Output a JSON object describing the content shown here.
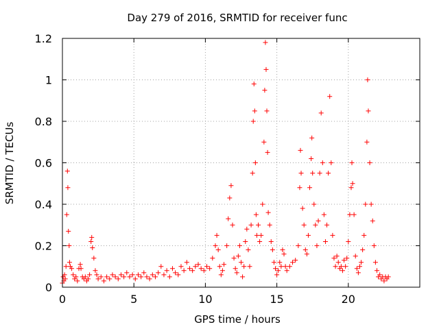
{
  "chart_data": {
    "type": "scatter",
    "title": "Day 279 of 2016, SRMTID for receiver func",
    "xlabel": "GPS time / hours",
    "ylabel": "SRMTID / TECUs",
    "xlim": [
      0,
      25
    ],
    "ylim": [
      0,
      1.2
    ],
    "xticks": [
      0,
      5,
      10,
      15,
      20
    ],
    "xtick_labels": [
      "0",
      "5",
      "10",
      "15",
      "20"
    ],
    "yticks": [
      0,
      0.2,
      0.4,
      0.6,
      0.8,
      1.0,
      1.2
    ],
    "ytick_labels": [
      "0",
      "0.2",
      "0.4",
      "0.6",
      "0.8",
      "1",
      "1.2"
    ],
    "grid": true,
    "marker": "+",
    "color": "#ff0000",
    "series": [
      {
        "name": "SRMTID",
        "points": [
          [
            0.0,
            0.02
          ],
          [
            0.05,
            0.05
          ],
          [
            0.1,
            0.03
          ],
          [
            0.15,
            0.06
          ],
          [
            0.2,
            0.04
          ],
          [
            0.25,
            0.1
          ],
          [
            0.3,
            0.35
          ],
          [
            0.35,
            0.56
          ],
          [
            0.38,
            0.48
          ],
          [
            0.42,
            0.27
          ],
          [
            0.47,
            0.2
          ],
          [
            0.5,
            0.12
          ],
          [
            0.55,
            0.1
          ],
          [
            0.65,
            0.09
          ],
          [
            0.75,
            0.06
          ],
          [
            0.85,
            0.04
          ],
          [
            0.95,
            0.05
          ],
          [
            1.05,
            0.03
          ],
          [
            1.15,
            0.09
          ],
          [
            1.25,
            0.11
          ],
          [
            1.3,
            0.09
          ],
          [
            1.4,
            0.05
          ],
          [
            1.5,
            0.04
          ],
          [
            1.6,
            0.05
          ],
          [
            1.7,
            0.03
          ],
          [
            1.8,
            0.04
          ],
          [
            1.9,
            0.06
          ],
          [
            2.0,
            0.22
          ],
          [
            2.05,
            0.24
          ],
          [
            2.1,
            0.19
          ],
          [
            2.2,
            0.14
          ],
          [
            2.3,
            0.08
          ],
          [
            2.4,
            0.06
          ],
          [
            2.5,
            0.04
          ],
          [
            2.7,
            0.05
          ],
          [
            2.9,
            0.03
          ],
          [
            3.1,
            0.05
          ],
          [
            3.3,
            0.04
          ],
          [
            3.5,
            0.06
          ],
          [
            3.7,
            0.05
          ],
          [
            3.9,
            0.04
          ],
          [
            4.1,
            0.06
          ],
          [
            4.3,
            0.05
          ],
          [
            4.5,
            0.07
          ],
          [
            4.7,
            0.05
          ],
          [
            4.9,
            0.06
          ],
          [
            5.1,
            0.04
          ],
          [
            5.3,
            0.06
          ],
          [
            5.5,
            0.05
          ],
          [
            5.7,
            0.07
          ],
          [
            5.9,
            0.05
          ],
          [
            6.1,
            0.04
          ],
          [
            6.3,
            0.06
          ],
          [
            6.5,
            0.05
          ],
          [
            6.7,
            0.07
          ],
          [
            6.9,
            0.1
          ],
          [
            7.1,
            0.06
          ],
          [
            7.3,
            0.08
          ],
          [
            7.5,
            0.05
          ],
          [
            7.7,
            0.09
          ],
          [
            7.9,
            0.07
          ],
          [
            8.1,
            0.06
          ],
          [
            8.3,
            0.1
          ],
          [
            8.5,
            0.08
          ],
          [
            8.7,
            0.12
          ],
          [
            8.9,
            0.09
          ],
          [
            9.1,
            0.08
          ],
          [
            9.3,
            0.1
          ],
          [
            9.5,
            0.11
          ],
          [
            9.7,
            0.09
          ],
          [
            9.9,
            0.08
          ],
          [
            10.1,
            0.1
          ],
          [
            10.3,
            0.09
          ],
          [
            10.5,
            0.14
          ],
          [
            10.7,
            0.2
          ],
          [
            10.8,
            0.25
          ],
          [
            10.9,
            0.18
          ],
          [
            11.0,
            0.1
          ],
          [
            11.1,
            0.06
          ],
          [
            11.2,
            0.08
          ],
          [
            11.3,
            0.11
          ],
          [
            11.5,
            0.2
          ],
          [
            11.6,
            0.33
          ],
          [
            11.7,
            0.43
          ],
          [
            11.8,
            0.49
          ],
          [
            11.9,
            0.3
          ],
          [
            12.0,
            0.14
          ],
          [
            12.1,
            0.09
          ],
          [
            12.2,
            0.07
          ],
          [
            12.3,
            0.15
          ],
          [
            12.4,
            0.2
          ],
          [
            12.5,
            0.12
          ],
          [
            12.6,
            0.05
          ],
          [
            12.7,
            0.1
          ],
          [
            12.8,
            0.22
          ],
          [
            12.9,
            0.28
          ],
          [
            13.0,
            0.18
          ],
          [
            13.1,
            0.1
          ],
          [
            13.2,
            0.3
          ],
          [
            13.3,
            0.55
          ],
          [
            13.35,
            0.8
          ],
          [
            13.4,
            0.98
          ],
          [
            13.45,
            0.85
          ],
          [
            13.5,
            0.6
          ],
          [
            13.55,
            0.35
          ],
          [
            13.6,
            0.25
          ],
          [
            13.7,
            0.3
          ],
          [
            13.8,
            0.22
          ],
          [
            13.9,
            0.25
          ],
          [
            14.0,
            0.4
          ],
          [
            14.1,
            0.7
          ],
          [
            14.15,
            0.95
          ],
          [
            14.2,
            1.18
          ],
          [
            14.25,
            1.05
          ],
          [
            14.3,
            0.85
          ],
          [
            14.35,
            0.65
          ],
          [
            14.4,
            0.36
          ],
          [
            14.5,
            0.3
          ],
          [
            14.6,
            0.22
          ],
          [
            14.7,
            0.18
          ],
          [
            14.8,
            0.12
          ],
          [
            14.9,
            0.09
          ],
          [
            15.0,
            0.06
          ],
          [
            15.1,
            0.08
          ],
          [
            15.2,
            0.12
          ],
          [
            15.3,
            0.1
          ],
          [
            15.4,
            0.18
          ],
          [
            15.5,
            0.16
          ],
          [
            15.6,
            0.1
          ],
          [
            15.7,
            0.08
          ],
          [
            15.9,
            0.1
          ],
          [
            16.1,
            0.12
          ],
          [
            16.3,
            0.13
          ],
          [
            16.5,
            0.2
          ],
          [
            16.6,
            0.48
          ],
          [
            16.65,
            0.66
          ],
          [
            16.7,
            0.55
          ],
          [
            16.8,
            0.38
          ],
          [
            16.9,
            0.3
          ],
          [
            17.0,
            0.18
          ],
          [
            17.1,
            0.16
          ],
          [
            17.2,
            0.25
          ],
          [
            17.3,
            0.48
          ],
          [
            17.4,
            0.62
          ],
          [
            17.45,
            0.72
          ],
          [
            17.5,
            0.55
          ],
          [
            17.6,
            0.4
          ],
          [
            17.7,
            0.3
          ],
          [
            17.8,
            0.2
          ],
          [
            17.9,
            0.32
          ],
          [
            18.0,
            0.55
          ],
          [
            18.1,
            0.84
          ],
          [
            18.2,
            0.6
          ],
          [
            18.3,
            0.35
          ],
          [
            18.4,
            0.22
          ],
          [
            18.5,
            0.3
          ],
          [
            18.6,
            0.55
          ],
          [
            18.7,
            0.92
          ],
          [
            18.8,
            0.6
          ],
          [
            18.9,
            0.25
          ],
          [
            19.0,
            0.14
          ],
          [
            19.1,
            0.1
          ],
          [
            19.2,
            0.15
          ],
          [
            19.3,
            0.12
          ],
          [
            19.4,
            0.09
          ],
          [
            19.5,
            0.1
          ],
          [
            19.6,
            0.08
          ],
          [
            19.7,
            0.13
          ],
          [
            19.8,
            0.1
          ],
          [
            19.9,
            0.14
          ],
          [
            20.0,
            0.22
          ],
          [
            20.1,
            0.35
          ],
          [
            20.2,
            0.48
          ],
          [
            20.25,
            0.6
          ],
          [
            20.3,
            0.5
          ],
          [
            20.4,
            0.35
          ],
          [
            20.5,
            0.15
          ],
          [
            20.6,
            0.09
          ],
          [
            20.7,
            0.07
          ],
          [
            20.8,
            0.1
          ],
          [
            20.9,
            0.12
          ],
          [
            21.0,
            0.18
          ],
          [
            21.1,
            0.25
          ],
          [
            21.2,
            0.4
          ],
          [
            21.3,
            0.7
          ],
          [
            21.35,
            1.0
          ],
          [
            21.4,
            0.85
          ],
          [
            21.5,
            0.6
          ],
          [
            21.6,
            0.4
          ],
          [
            21.7,
            0.32
          ],
          [
            21.8,
            0.2
          ],
          [
            21.9,
            0.12
          ],
          [
            22.0,
            0.08
          ],
          [
            22.1,
            0.05
          ],
          [
            22.2,
            0.06
          ],
          [
            22.3,
            0.04
          ],
          [
            22.4,
            0.05
          ],
          [
            22.5,
            0.03
          ],
          [
            22.6,
            0.05
          ],
          [
            22.7,
            0.04
          ],
          [
            22.8,
            0.05
          ]
        ]
      }
    ]
  }
}
